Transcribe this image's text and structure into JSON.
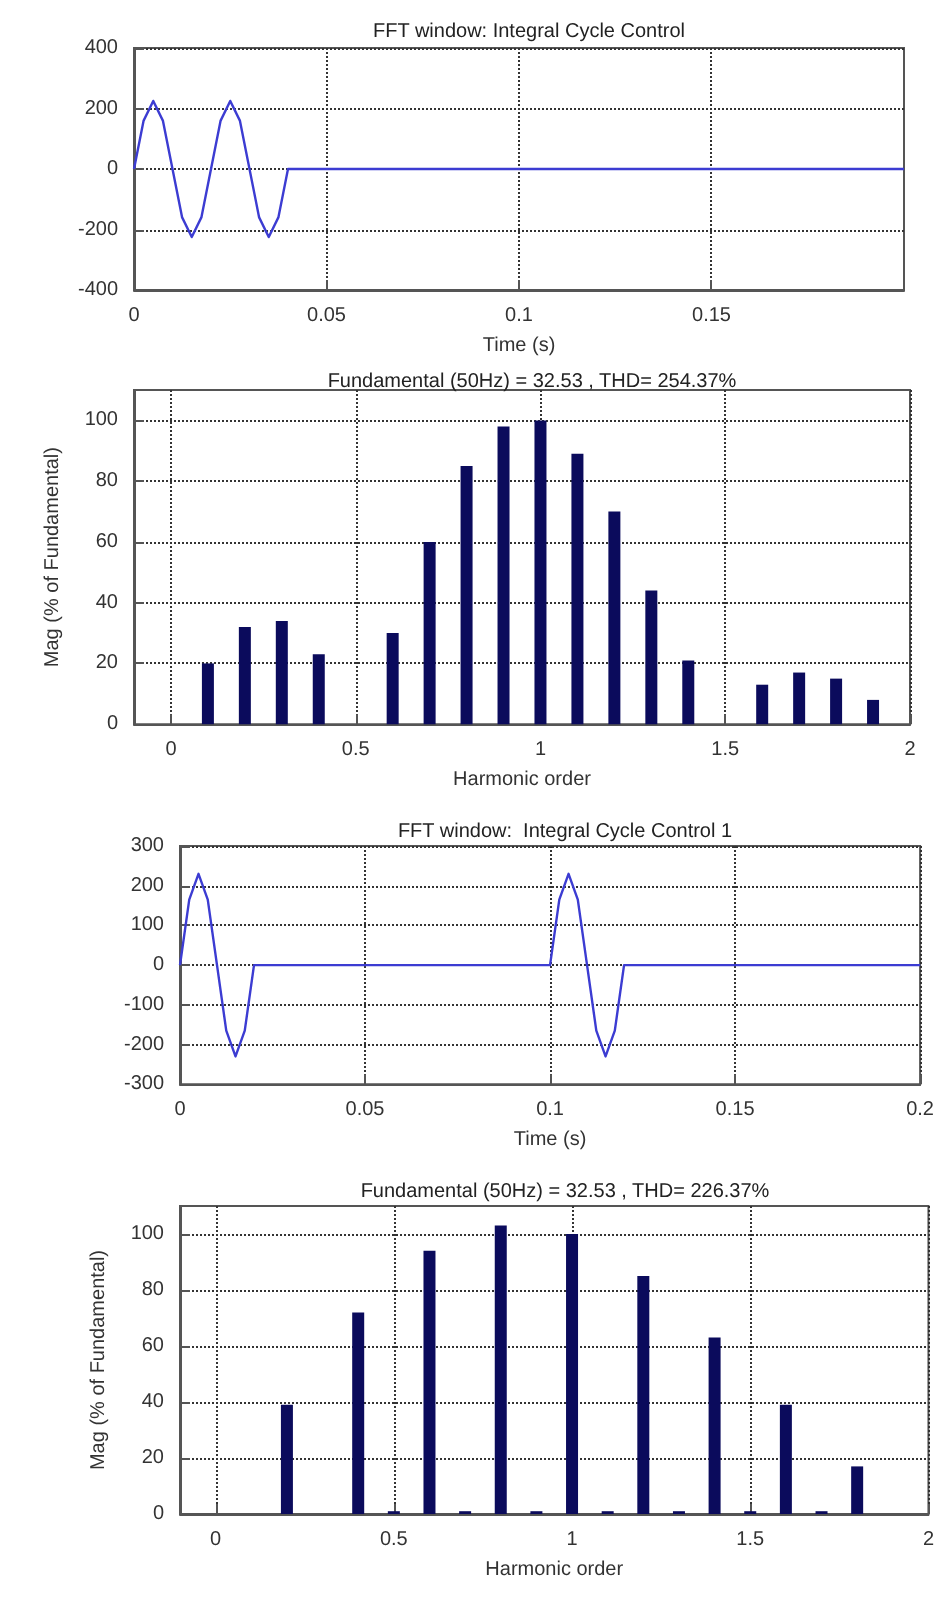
{
  "chart_data": [
    {
      "type": "line",
      "title": "FFT window: Integral Cycle Control",
      "xlabel": "Time (s)",
      "xlim": [
        0,
        0.2
      ],
      "xticks": [
        0,
        0.05,
        0.1,
        0.15
      ],
      "ylim": [
        -400,
        400
      ],
      "yticks": [
        -400,
        -200,
        0,
        200,
        400
      ],
      "grid": true,
      "marker": "none",
      "line_style": "solid",
      "series": [
        {
          "color": "#3c3cd2",
          "x": [
            0,
            0.0025,
            0.005,
            0.0075,
            0.01,
            0.0125,
            0.015,
            0.0175,
            0.02,
            0.0225,
            0.025,
            0.0275,
            0.03,
            0.0325,
            0.035,
            0.0375,
            0.04,
            0.2
          ],
          "values": [
            0,
            160,
            225,
            160,
            0,
            -160,
            -225,
            -160,
            0,
            160,
            225,
            160,
            0,
            -160,
            -225,
            -160,
            0,
            0
          ]
        }
      ]
    },
    {
      "type": "bar",
      "title": "Fundamental (50Hz) = 32.53 , THD= 254.37%",
      "xlabel": "Harmonic order",
      "ylabel": "Mag (% of Fundamental)",
      "xlim": [
        -0.1,
        2
      ],
      "xticks": [
        0,
        0.5,
        1,
        1.5,
        2
      ],
      "ylim": [
        0,
        110
      ],
      "yticks": [
        0,
        20,
        40,
        60,
        80,
        100
      ],
      "grid": true,
      "series": [
        {
          "color": "#0b0b5c",
          "x": [
            0.1,
            0.2,
            0.3,
            0.4,
            0.6,
            0.7,
            0.8,
            0.9,
            1,
            1.1,
            1.2,
            1.3,
            1.4,
            1.6,
            1.7,
            1.8,
            1.9
          ],
          "values": [
            20,
            32,
            34,
            23,
            30,
            60,
            85,
            98,
            100,
            89,
            70,
            44,
            21,
            13,
            17,
            15,
            8
          ]
        }
      ]
    },
    {
      "type": "line",
      "title": "FFT window:  Integral Cycle Control 1",
      "xlabel": "Time (s)",
      "xlim": [
        0,
        0.2
      ],
      "xticks": [
        0,
        0.05,
        0.1,
        0.15,
        0.2
      ],
      "ylim": [
        -300,
        300
      ],
      "yticks": [
        -300,
        -200,
        -100,
        0,
        100,
        200,
        300
      ],
      "grid": true,
      "marker": "none",
      "line_style": "solid",
      "series": [
        {
          "color": "#3c3cd2",
          "x": [
            0,
            0.0025,
            0.005,
            0.0075,
            0.01,
            0.0125,
            0.015,
            0.0175,
            0.02,
            0.1,
            0.1025,
            0.105,
            0.1075,
            0.11,
            0.1125,
            0.115,
            0.1175,
            0.12,
            0.2
          ],
          "values": [
            0,
            165,
            230,
            165,
            0,
            -165,
            -230,
            -165,
            0,
            0,
            165,
            230,
            165,
            0,
            -165,
            -230,
            -165,
            0,
            0
          ]
        }
      ]
    },
    {
      "type": "bar",
      "title": "Fundamental (50Hz) = 32.53 , THD= 226.37%",
      "xlabel": "Harmonic order",
      "ylabel": "Mag (% of Fundamental)",
      "xlim": [
        -0.1,
        2
      ],
      "xticks": [
        0,
        0.5,
        1,
        1.5,
        2
      ],
      "ylim": [
        0,
        110
      ],
      "yticks": [
        0,
        20,
        40,
        60,
        80,
        100
      ],
      "grid": true,
      "series": [
        {
          "color": "#0b0b5c",
          "x": [
            0.2,
            0.4,
            0.5,
            0.6,
            0.7,
            0.8,
            0.9,
            1,
            1.1,
            1.2,
            1.3,
            1.4,
            1.5,
            1.6,
            1.7,
            1.8
          ],
          "values": [
            39,
            72,
            1,
            94,
            1,
            103,
            1,
            100,
            1,
            85,
            1,
            63,
            1,
            39,
            1,
            17
          ]
        }
      ]
    }
  ]
}
